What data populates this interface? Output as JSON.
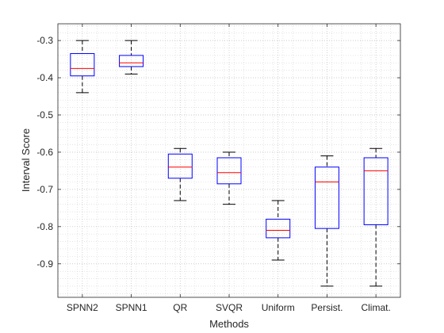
{
  "chart_data": {
    "type": "box",
    "title": "",
    "xlabel": "Methods",
    "ylabel": "Interval Score",
    "ylim": [
      -0.99,
      -0.255
    ],
    "yticks": [
      -0.9,
      -0.8,
      -0.7,
      -0.6,
      -0.5,
      -0.4,
      -0.3
    ],
    "ytick_labels": [
      "-0.9",
      "-0.8",
      "-0.7",
      "-0.6",
      "-0.5",
      "-0.4",
      "-0.3"
    ],
    "grid": true,
    "minor_grid": true,
    "categories": [
      "SPNN2",
      "SPNN1",
      "QR",
      "SVQR",
      "Uniform",
      "Persist.",
      "Climat."
    ],
    "boxes": [
      {
        "whisker_low": -0.44,
        "q1": -0.395,
        "median": -0.375,
        "q3": -0.335,
        "whisker_high": -0.3
      },
      {
        "whisker_low": -0.39,
        "q1": -0.37,
        "median": -0.36,
        "q3": -0.34,
        "whisker_high": -0.3
      },
      {
        "whisker_low": -0.73,
        "q1": -0.67,
        "median": -0.64,
        "q3": -0.605,
        "whisker_high": -0.59
      },
      {
        "whisker_low": -0.74,
        "q1": -0.685,
        "median": -0.655,
        "q3": -0.615,
        "whisker_high": -0.6
      },
      {
        "whisker_low": -0.89,
        "q1": -0.83,
        "median": -0.81,
        "q3": -0.78,
        "whisker_high": -0.73
      },
      {
        "whisker_low": -0.96,
        "q1": -0.805,
        "median": -0.68,
        "q3": -0.64,
        "whisker_high": -0.61
      },
      {
        "whisker_low": -0.96,
        "q1": -0.795,
        "median": -0.65,
        "q3": -0.615,
        "whisker_high": -0.59
      }
    ],
    "colors": {
      "box": "#0000ff",
      "median": "#ff0000",
      "whisker": "#000000",
      "axes": "#262626"
    }
  }
}
